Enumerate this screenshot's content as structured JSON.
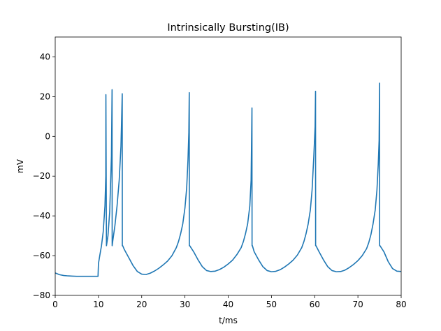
{
  "chart_data": {
    "type": "line",
    "title": "Intrinsically Bursting(IB)",
    "xlabel": "t/ms",
    "ylabel": "mV",
    "xlim": [
      0,
      80
    ],
    "ylim": [
      -80,
      50
    ],
    "xticks": [
      0,
      10,
      20,
      30,
      40,
      50,
      60,
      70,
      80
    ],
    "yticks": [
      -80,
      -60,
      -40,
      -20,
      0,
      20,
      40
    ],
    "xtick_labels": [
      "0",
      "10",
      "20",
      "30",
      "40",
      "50",
      "60",
      "70",
      "80"
    ],
    "ytick_labels": [
      "−80",
      "−60",
      "−40",
      "−20",
      "0",
      "20",
      "40"
    ],
    "grid": false,
    "series": [
      {
        "color": "#1f77b4",
        "x": [
          0,
          1,
          2,
          3,
          4,
          5,
          6,
          7,
          8,
          9,
          9.9,
          10,
          10.3,
          10.7,
          11.1,
          11.5,
          11.7,
          11.72,
          11.85,
          12.2,
          12.6,
          13.0,
          13.15,
          13.17,
          13.35,
          13.8,
          14.3,
          14.8,
          15.2,
          15.5,
          15.52,
          15.6,
          16,
          17,
          18,
          19,
          20,
          21,
          22,
          23,
          24,
          25,
          26,
          27,
          28,
          28.5,
          29,
          29.5,
          30,
          30.4,
          30.7,
          30.9,
          31.0,
          31.02,
          31.1,
          32,
          33,
          34,
          35,
          36,
          37,
          38,
          39,
          40,
          41,
          42,
          43,
          43.5,
          44,
          44.5,
          45,
          45.3,
          45.5,
          45.52,
          45.6,
          46,
          47,
          48,
          49,
          50,
          51,
          52,
          53,
          54,
          55,
          56,
          57,
          57.5,
          58,
          58.5,
          59,
          59.4,
          59.8,
          60.1,
          60.2,
          60.22,
          60.3,
          61,
          62,
          63,
          64,
          65,
          66,
          67,
          68,
          69,
          70,
          71,
          72,
          72.5,
          73,
          73.5,
          74,
          74.4,
          74.7,
          74.9,
          75.0,
          75.02,
          75.1,
          76,
          77,
          78,
          79,
          80
        ],
        "y": [
          -68.7,
          -69.6,
          -70.0,
          -70.2,
          -70.3,
          -70.4,
          -70.4,
          -70.4,
          -70.4,
          -70.4,
          -70.4,
          -64,
          -60,
          -55,
          -48,
          -35,
          -20,
          21,
          -55,
          -50,
          -38,
          -10,
          23.5,
          -55,
          -52,
          -45,
          -35,
          -22,
          -5,
          21.5,
          -55,
          -55,
          -57,
          -61,
          -65,
          -68,
          -69.3,
          -69.5,
          -68.8,
          -67.7,
          -66.3,
          -64.6,
          -62.7,
          -60,
          -56,
          -53,
          -49,
          -44,
          -36,
          -26,
          -12,
          2,
          22,
          -55,
          -55,
          -58,
          -62,
          -65.5,
          -67.5,
          -68,
          -67.8,
          -67,
          -65.8,
          -64.2,
          -62.3,
          -59.5,
          -56,
          -53,
          -49,
          -44,
          -35,
          -22,
          14.3,
          -55,
          -55,
          -58,
          -62,
          -65.5,
          -67.5,
          -68.1,
          -67.9,
          -67.1,
          -65.8,
          -64.2,
          -62.3,
          -59.7,
          -56,
          -53,
          -49,
          -44,
          -37,
          -27,
          -10,
          5,
          22.7,
          -55,
          -55,
          -58,
          -62,
          -65.5,
          -67.5,
          -68.1,
          -68,
          -67.3,
          -66,
          -64.4,
          -62.5,
          -60,
          -56.5,
          -53.5,
          -49.5,
          -44,
          -37,
          -27,
          -14,
          -2,
          26.8,
          -55,
          -55,
          -58,
          -63,
          -66.5,
          -67.8,
          -68
        ]
      }
    ]
  }
}
